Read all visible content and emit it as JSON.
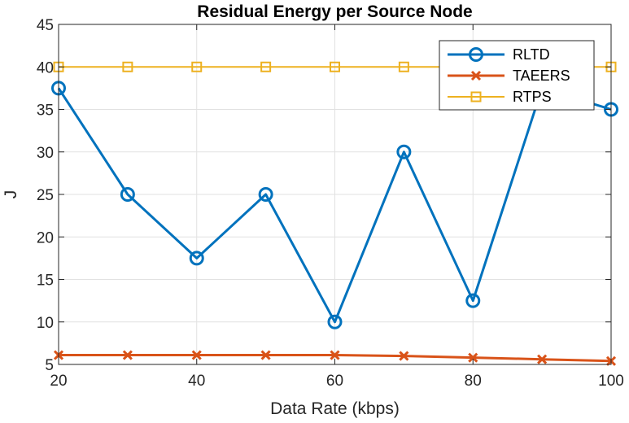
{
  "chart_data": {
    "type": "line",
    "title": "Residual Energy per Source Node",
    "xlabel": "Data Rate (kbps)",
    "ylabel": "J",
    "xlim": [
      20,
      100
    ],
    "ylim": [
      5,
      45
    ],
    "xticks": [
      20,
      40,
      60,
      80,
      100
    ],
    "yticks": [
      5,
      10,
      15,
      20,
      25,
      30,
      35,
      40,
      45
    ],
    "grid": true,
    "legend_position": "top-right",
    "x": [
      20,
      30,
      40,
      50,
      60,
      70,
      80,
      90,
      100
    ],
    "series": [
      {
        "name": "RLTD",
        "marker": "circle",
        "color": "#0072BD",
        "values": [
          37.5,
          25,
          17.5,
          25,
          10,
          30,
          12.5,
          37.5,
          35
        ]
      },
      {
        "name": "TAEERS",
        "marker": "x",
        "color": "#D95319",
        "values": [
          6.1,
          6.1,
          6.1,
          6.1,
          6.1,
          6.0,
          5.8,
          5.6,
          5.4
        ]
      },
      {
        "name": "RTPS",
        "marker": "square",
        "color": "#EDB120",
        "values": [
          40,
          40,
          40,
          40,
          40,
          40,
          40,
          40,
          40
        ]
      }
    ]
  }
}
